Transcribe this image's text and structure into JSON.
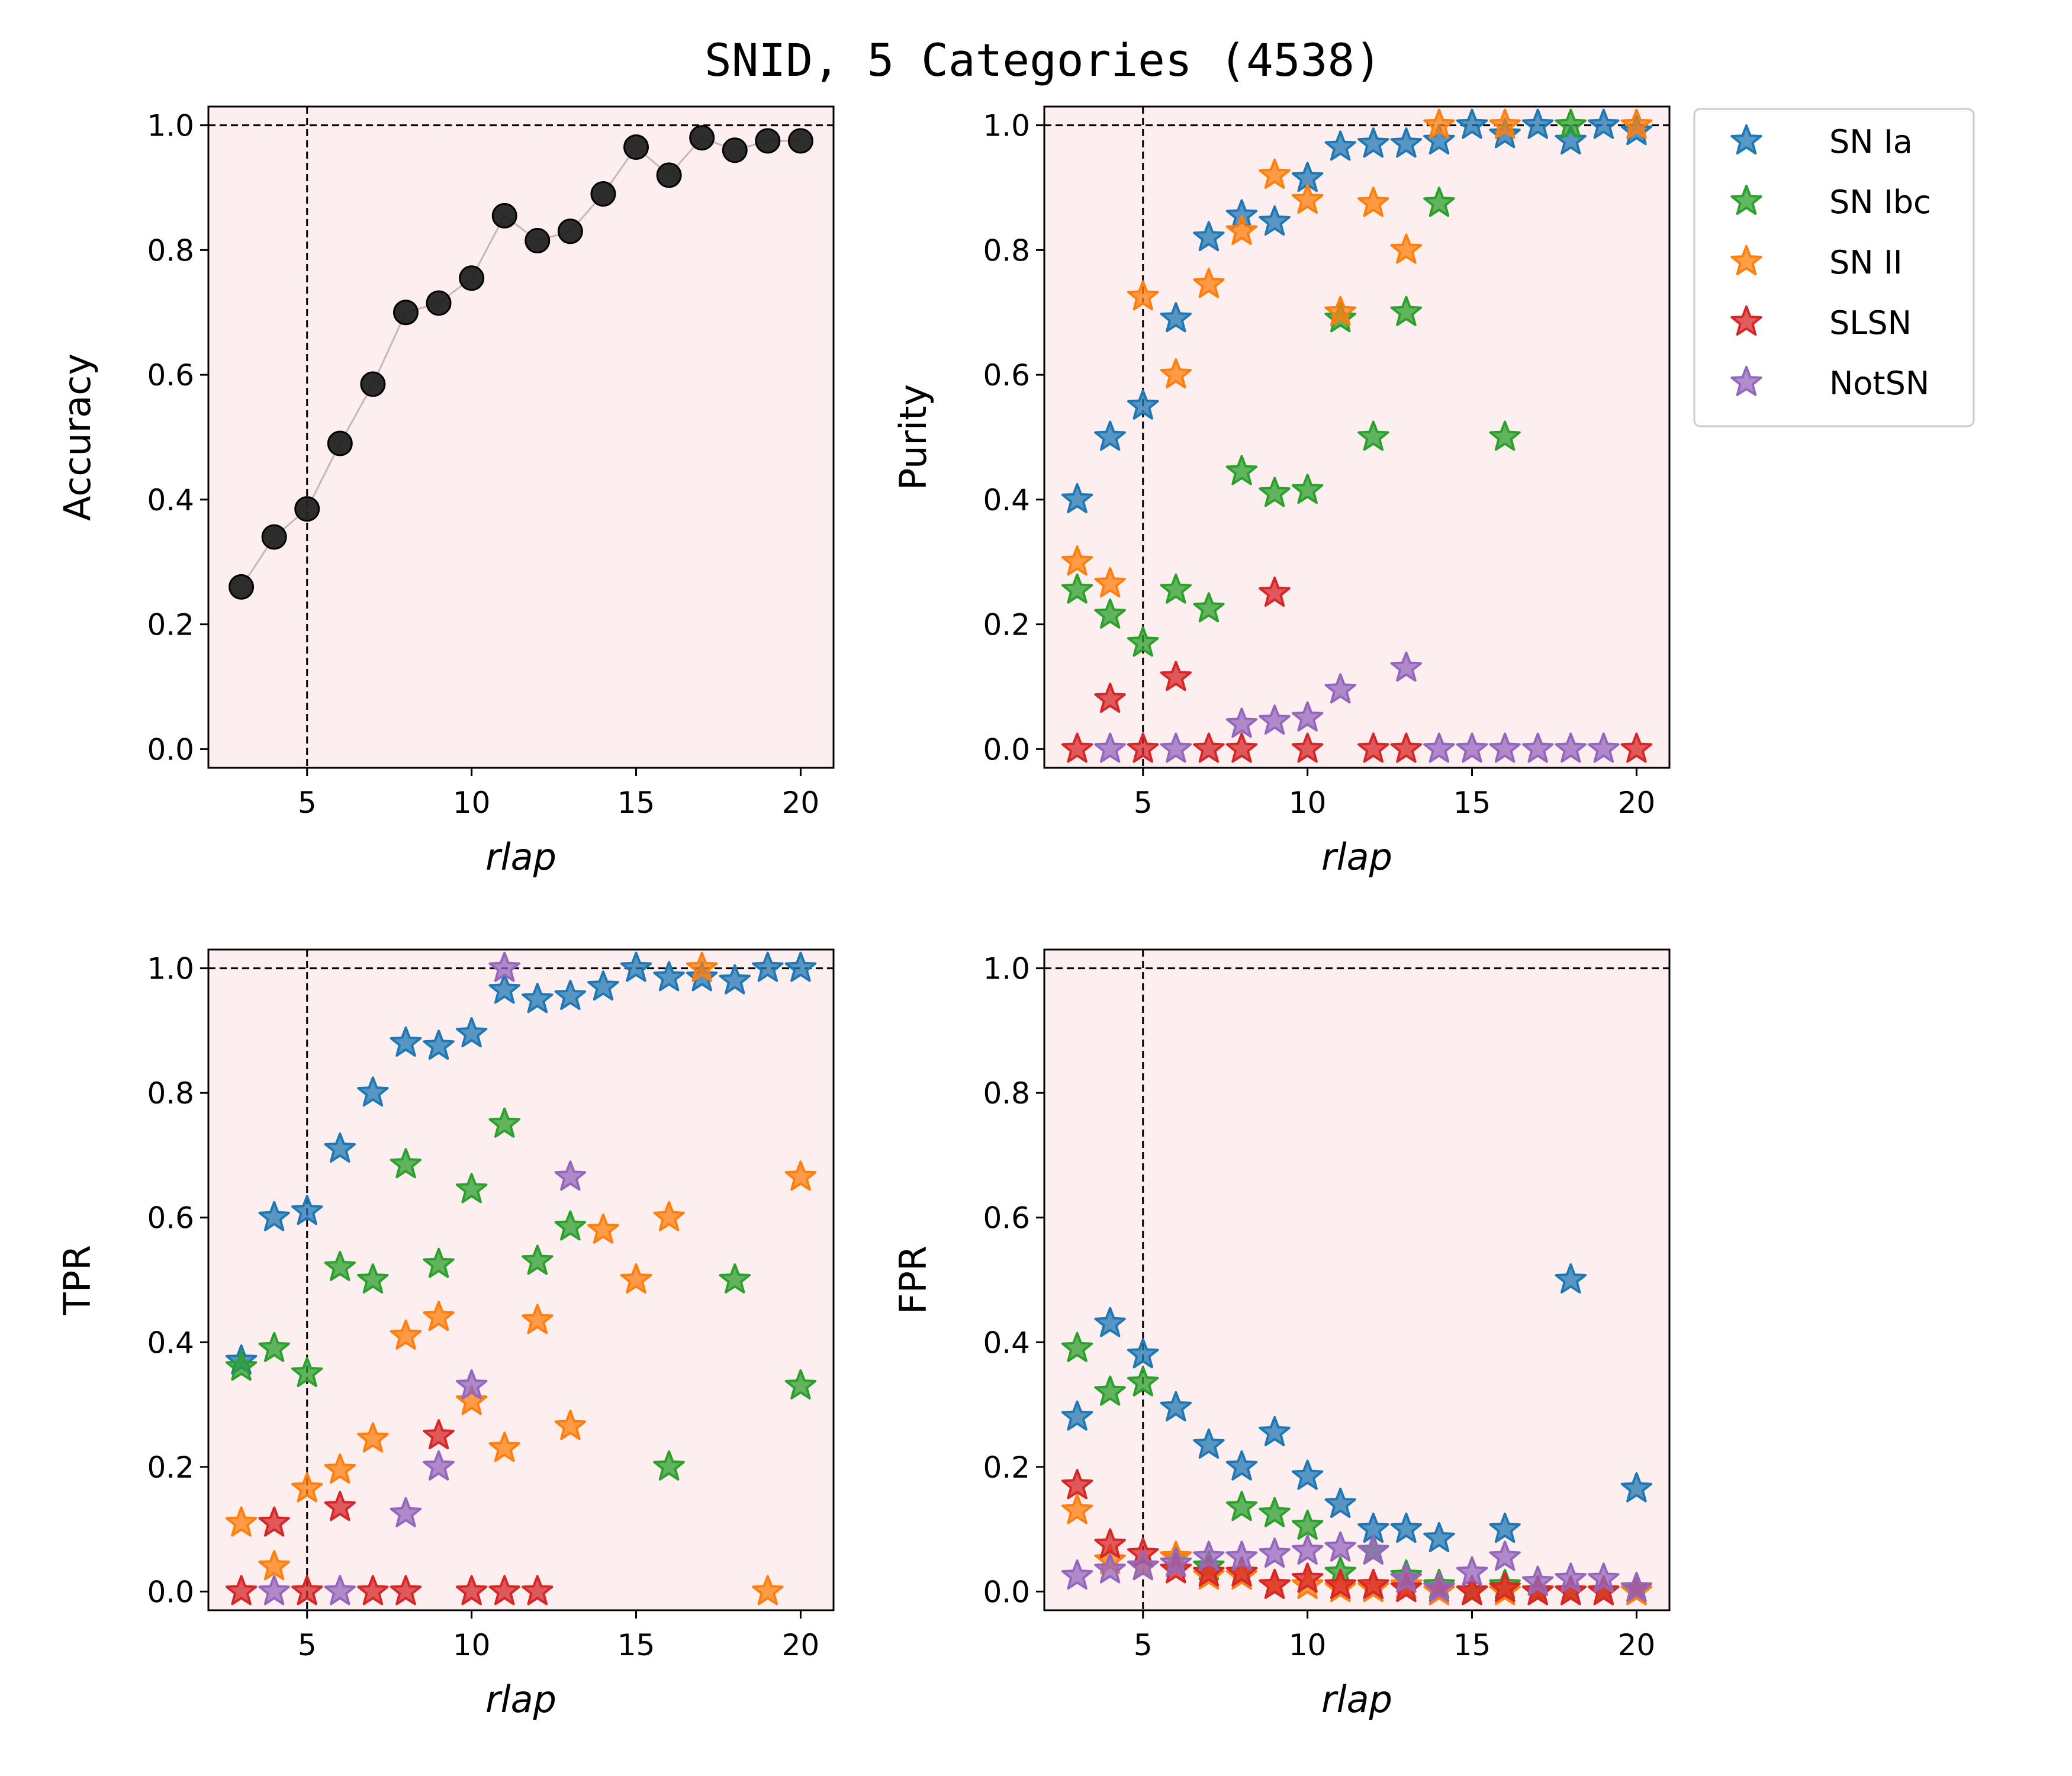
{
  "suptitle": "SNID, 5 Categories (4538)",
  "legend": [
    {
      "name": "SN Ia",
      "color": "#1f77b4"
    },
    {
      "name": "SN Ibc",
      "color": "#2ca02c"
    },
    {
      "name": "SN II",
      "color": "#ff7f0e"
    },
    {
      "name": "SLSN",
      "color": "#d62728"
    },
    {
      "name": "NotSN",
      "color": "#9467bd"
    }
  ],
  "colors": {
    "background": "#fdeff0",
    "accuracy_marker": "#222222",
    "accuracy_line": "#c9b6b9"
  },
  "chart_data": [
    {
      "type": "line",
      "panel": "top-left",
      "xlabel": "rlap",
      "ylabel": "Accuracy",
      "xlim": [
        2,
        21
      ],
      "ylim": [
        -0.03,
        1.03
      ],
      "xticks": [
        "5",
        "10",
        "15",
        "20"
      ],
      "yticks": [
        "0.0",
        "0.2",
        "0.4",
        "0.6",
        "0.8",
        "1.0"
      ],
      "reference_lines": {
        "hline": 1.0,
        "vline": 5
      },
      "series": [
        {
          "name": "Accuracy",
          "x": [
            3,
            4,
            5,
            6,
            7,
            8,
            9,
            10,
            11,
            12,
            13,
            14,
            15,
            16,
            17,
            18,
            19,
            20
          ],
          "values": [
            0.26,
            0.34,
            0.385,
            0.49,
            0.585,
            0.7,
            0.715,
            0.755,
            0.855,
            0.815,
            0.83,
            0.89,
            0.965,
            0.92,
            0.98,
            0.96,
            0.975,
            0.975
          ]
        }
      ]
    },
    {
      "type": "scatter",
      "panel": "top-right",
      "xlabel": "rlap",
      "ylabel": "Purity",
      "xlim": [
        2,
        21
      ],
      "ylim": [
        -0.03,
        1.03
      ],
      "xticks": [
        "5",
        "10",
        "15",
        "20"
      ],
      "yticks": [
        "0.0",
        "0.2",
        "0.4",
        "0.6",
        "0.8",
        "1.0"
      ],
      "reference_lines": {
        "hline": 1.0,
        "vline": 5
      },
      "series": [
        {
          "name": "SN Ia",
          "x": [
            3,
            4,
            5,
            6,
            7,
            8,
            9,
            10,
            11,
            12,
            13,
            14,
            15,
            16,
            17,
            18,
            19,
            20
          ],
          "values": [
            0.4,
            0.5,
            0.55,
            0.69,
            0.82,
            0.855,
            0.845,
            0.915,
            0.965,
            0.97,
            0.97,
            0.975,
            1.0,
            0.985,
            1.0,
            0.975,
            1.0,
            0.99
          ]
        },
        {
          "name": "SN Ibc",
          "x": [
            3,
            4,
            5,
            6,
            7,
            8,
            9,
            10,
            11,
            12,
            13,
            14,
            16,
            18
          ],
          "values": [
            0.255,
            0.215,
            0.17,
            0.255,
            0.225,
            0.445,
            0.41,
            0.415,
            0.69,
            0.5,
            0.7,
            0.875,
            0.5,
            1.0
          ]
        },
        {
          "name": "SN II",
          "x": [
            3,
            4,
            5,
            6,
            7,
            8,
            9,
            10,
            11,
            12,
            13,
            14,
            16,
            20
          ],
          "values": [
            0.3,
            0.265,
            0.725,
            0.6,
            0.745,
            0.83,
            0.92,
            0.88,
            0.7,
            0.875,
            0.8,
            1.0,
            1.0,
            1.0
          ]
        },
        {
          "name": "SLSN",
          "x": [
            3,
            4,
            5,
            6,
            7,
            8,
            9,
            10,
            12,
            13,
            20
          ],
          "values": [
            0.0,
            0.08,
            0.0,
            0.115,
            0.0,
            0.0,
            0.25,
            0.0,
            0.0,
            0.0,
            0.0
          ]
        },
        {
          "name": "NotSN",
          "x": [
            4,
            6,
            8,
            9,
            10,
            11,
            13,
            14,
            15,
            16,
            17,
            18,
            19
          ],
          "values": [
            0.0,
            0.0,
            0.04,
            0.045,
            0.05,
            0.095,
            0.13,
            0.0,
            0.0,
            0.0,
            0.0,
            0.0,
            0.0
          ]
        }
      ]
    },
    {
      "type": "scatter",
      "panel": "bottom-left",
      "xlabel": "rlap",
      "ylabel": "TPR",
      "xlim": [
        2,
        21
      ],
      "ylim": [
        -0.03,
        1.03
      ],
      "xticks": [
        "5",
        "10",
        "15",
        "20"
      ],
      "yticks": [
        "0.0",
        "0.2",
        "0.4",
        "0.6",
        "0.8",
        "1.0"
      ],
      "reference_lines": {
        "hline": 1.0,
        "vline": 5
      },
      "series": [
        {
          "name": "SN Ia",
          "x": [
            3,
            4,
            5,
            6,
            7,
            8,
            9,
            10,
            11,
            12,
            13,
            14,
            15,
            16,
            17,
            18,
            19,
            20
          ],
          "values": [
            0.37,
            0.6,
            0.61,
            0.71,
            0.8,
            0.88,
            0.875,
            0.895,
            0.965,
            0.95,
            0.955,
            0.97,
            1.0,
            0.985,
            0.985,
            0.98,
            1.0,
            1.0
          ]
        },
        {
          "name": "SN Ibc",
          "x": [
            3,
            4,
            5,
            6,
            7,
            8,
            9,
            10,
            11,
            12,
            13,
            16,
            18,
            20
          ],
          "values": [
            0.36,
            0.39,
            0.35,
            0.52,
            0.5,
            0.685,
            0.525,
            0.645,
            0.75,
            0.53,
            0.585,
            0.2,
            0.5,
            0.33
          ]
        },
        {
          "name": "SN II",
          "x": [
            3,
            4,
            5,
            6,
            7,
            8,
            9,
            10,
            11,
            12,
            13,
            14,
            15,
            16,
            17,
            19,
            20
          ],
          "values": [
            0.11,
            0.04,
            0.165,
            0.195,
            0.245,
            0.41,
            0.44,
            0.305,
            0.23,
            0.435,
            0.265,
            0.58,
            0.5,
            0.6,
            1.0,
            0.0,
            0.665
          ]
        },
        {
          "name": "SLSN",
          "x": [
            3,
            4,
            5,
            6,
            7,
            8,
            9,
            10,
            11,
            12
          ],
          "values": [
            0.0,
            0.11,
            0.0,
            0.135,
            0.0,
            0.0,
            0.25,
            0.0,
            0.0,
            0.0
          ]
        },
        {
          "name": "NotSN",
          "x": [
            4,
            6,
            8,
            9,
            10,
            11,
            13
          ],
          "values": [
            0.0,
            0.0,
            0.125,
            0.2,
            0.33,
            1.0,
            0.665
          ]
        }
      ]
    },
    {
      "type": "scatter",
      "panel": "bottom-right",
      "xlabel": "rlap",
      "ylabel": "FPR",
      "xlim": [
        2,
        21
      ],
      "ylim": [
        -0.03,
        1.03
      ],
      "xticks": [
        "5",
        "10",
        "15",
        "20"
      ],
      "yticks": [
        "0.0",
        "0.2",
        "0.4",
        "0.6",
        "0.8",
        "1.0"
      ],
      "reference_lines": {
        "hline": 1.0,
        "vline": 5
      },
      "series": [
        {
          "name": "SN Ia",
          "x": [
            3,
            4,
            5,
            6,
            7,
            8,
            9,
            10,
            11,
            12,
            13,
            14,
            15,
            16,
            17,
            18,
            19,
            20
          ],
          "values": [
            0.28,
            0.43,
            0.38,
            0.295,
            0.235,
            0.2,
            0.255,
            0.185,
            0.14,
            0.1,
            0.1,
            0.085,
            0.0,
            0.1,
            0.0,
            0.5,
            0.0,
            0.165
          ]
        },
        {
          "name": "SN Ibc",
          "x": [
            3,
            4,
            5,
            6,
            7,
            8,
            9,
            10,
            11,
            12,
            13,
            14,
            15,
            16,
            17,
            18,
            19,
            20
          ],
          "values": [
            0.39,
            0.32,
            0.335,
            0.055,
            0.04,
            0.135,
            0.125,
            0.105,
            0.03,
            0.065,
            0.025,
            0.01,
            0.0,
            0.01,
            0.0,
            0.0,
            0.0,
            0.0
          ]
        },
        {
          "name": "SN II",
          "x": [
            3,
            4,
            5,
            6,
            7,
            8,
            9,
            10,
            11,
            12,
            13,
            14,
            15,
            16,
            17,
            18,
            19,
            20
          ],
          "values": [
            0.13,
            0.05,
            0.04,
            0.055,
            0.025,
            0.025,
            0.01,
            0.01,
            0.005,
            0.005,
            0.01,
            0.0,
            0.0,
            0.0,
            0.0,
            0.0,
            0.0,
            0.0
          ]
        },
        {
          "name": "SLSN",
          "x": [
            3,
            4,
            5,
            6,
            7,
            8,
            9,
            10,
            11,
            12,
            13,
            14,
            15,
            16,
            17,
            18,
            19,
            20
          ],
          "values": [
            0.17,
            0.075,
            0.06,
            0.035,
            0.03,
            0.03,
            0.01,
            0.02,
            0.01,
            0.01,
            0.005,
            0.005,
            0.0,
            0.005,
            0.0,
            0.0,
            0.0,
            0.005
          ]
        },
        {
          "name": "NotSN",
          "x": [
            3,
            4,
            5,
            6,
            7,
            8,
            9,
            10,
            11,
            12,
            13,
            14,
            15,
            16,
            17,
            18,
            19,
            20
          ],
          "values": [
            0.025,
            0.035,
            0.04,
            0.045,
            0.055,
            0.055,
            0.06,
            0.065,
            0.07,
            0.065,
            0.02,
            0.005,
            0.03,
            0.055,
            0.015,
            0.02,
            0.02,
            0.005
          ]
        }
      ]
    }
  ]
}
